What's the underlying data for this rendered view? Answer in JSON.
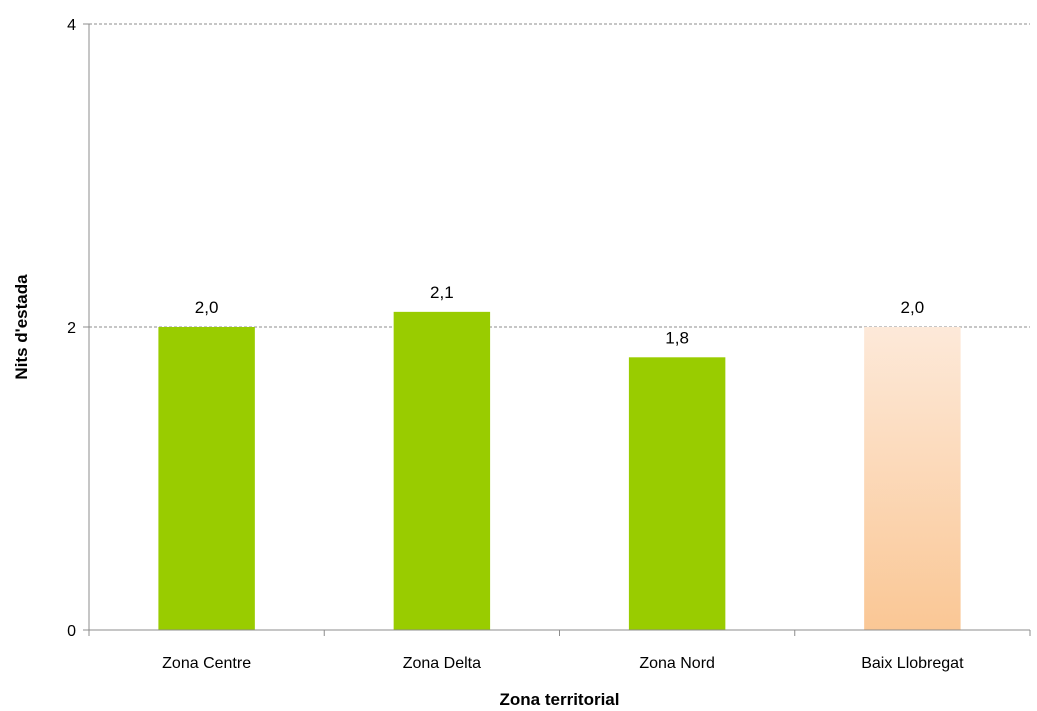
{
  "chart_data": {
    "type": "bar",
    "title": "",
    "xlabel": "Zona territorial",
    "ylabel": "Nits d'estada",
    "ylim": [
      0,
      4
    ],
    "yticks": [
      0,
      2,
      4
    ],
    "grid": "horizontal dashed",
    "categories": [
      "Zona Centre",
      "Zona Delta",
      "Zona Nord",
      "Baix Llobregat"
    ],
    "values": [
      2.0,
      2.1,
      1.8,
      2.0
    ],
    "data_labels": [
      "2,0",
      "2,1",
      "1,8",
      "2,0"
    ],
    "bar_colors": [
      "#99cc00",
      "#99cc00",
      "#99cc00",
      "gradient-peach"
    ],
    "colors": {
      "green": "#99cc00",
      "peach_top": "#fde9d9",
      "peach_bottom": "#fac795"
    }
  }
}
